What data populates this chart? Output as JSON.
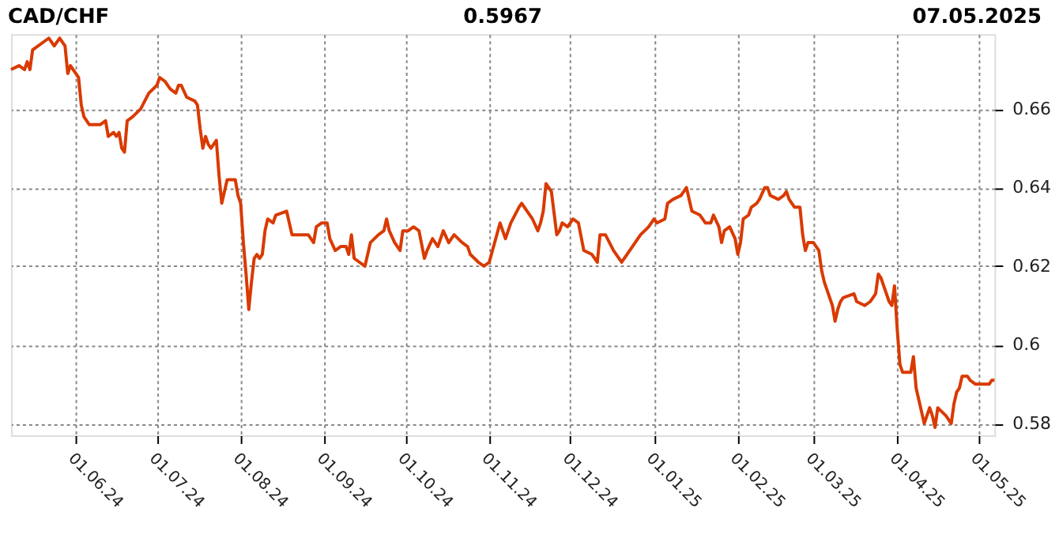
{
  "chart_data": {
    "type": "line",
    "title": "CAD/CHF",
    "annotations": [
      "0.5967",
      "07.05.2025"
    ],
    "x": [
      "2024-05-08",
      "2024-05-11",
      "2024-05-13",
      "2024-05-14",
      "2024-05-15",
      "2024-05-16",
      "2024-05-20",
      "2024-05-22",
      "2024-05-24",
      "2024-05-26",
      "2024-05-28",
      "2024-05-29",
      "2024-05-30",
      "2024-05-31",
      "2024-06-02",
      "2024-06-03",
      "2024-06-04",
      "2024-06-06",
      "2024-06-10",
      "2024-06-12",
      "2024-06-13",
      "2024-06-15",
      "2024-06-16",
      "2024-06-17",
      "2024-06-18",
      "2024-06-19",
      "2024-06-20",
      "2024-06-22",
      "2024-06-25",
      "2024-06-28",
      "2024-07-01",
      "2024-07-02",
      "2024-07-04",
      "2024-07-06",
      "2024-07-08",
      "2024-07-09",
      "2024-07-10",
      "2024-07-12",
      "2024-07-15",
      "2024-07-16",
      "2024-07-17",
      "2024-07-18",
      "2024-07-19",
      "2024-07-20",
      "2024-07-21",
      "2024-07-23",
      "2024-07-24",
      "2024-07-25",
      "2024-07-26",
      "2024-07-27",
      "2024-07-30",
      "2024-07-31",
      "2024-08-01",
      "2024-08-02",
      "2024-08-03",
      "2024-08-04",
      "2024-08-05",
      "2024-08-06",
      "2024-08-07",
      "2024-08-08",
      "2024-08-09",
      "2024-08-10",
      "2024-08-11",
      "2024-08-13",
      "2024-08-14",
      "2024-08-18",
      "2024-08-20",
      "2024-08-23",
      "2024-08-26",
      "2024-08-28",
      "2024-08-29",
      "2024-08-31",
      "2024-09-02",
      "2024-09-03",
      "2024-09-05",
      "2024-09-07",
      "2024-09-09",
      "2024-09-10",
      "2024-09-11",
      "2024-09-12",
      "2024-09-14",
      "2024-09-16",
      "2024-09-18",
      "2024-09-21",
      "2024-09-23",
      "2024-09-24",
      "2024-09-25",
      "2024-09-27",
      "2024-09-29",
      "2024-09-30",
      "2024-10-02",
      "2024-10-04",
      "2024-10-06",
      "2024-10-08",
      "2024-10-09",
      "2024-10-11",
      "2024-10-13",
      "2024-10-15",
      "2024-10-17",
      "2024-10-19",
      "2024-10-22",
      "2024-10-24",
      "2024-10-25",
      "2024-10-28",
      "2024-10-30",
      "2024-11-01",
      "2024-11-05",
      "2024-11-07",
      "2024-11-09",
      "2024-11-12",
      "2024-11-13",
      "2024-11-17",
      "2024-11-19",
      "2024-11-20",
      "2024-11-21",
      "2024-11-22",
      "2024-11-24",
      "2024-11-26",
      "2024-11-27",
      "2024-11-28",
      "2024-11-30",
      "2024-12-02",
      "2024-12-04",
      "2024-12-06",
      "2024-12-09",
      "2024-12-11",
      "2024-12-12",
      "2024-12-14",
      "2024-12-17",
      "2024-12-20",
      "2024-12-23",
      "2024-12-27",
      "2024-12-30",
      "2025-01-01",
      "2025-01-02",
      "2025-01-05",
      "2025-01-06",
      "2025-01-08",
      "2025-01-11",
      "2025-01-13",
      "2025-01-15",
      "2025-01-18",
      "2025-01-20",
      "2025-01-22",
      "2025-01-23",
      "2025-01-25",
      "2025-01-26",
      "2025-01-27",
      "2025-01-29",
      "2025-01-31",
      "2025-02-01",
      "2025-02-02",
      "2025-02-03",
      "2025-02-05",
      "2025-02-06",
      "2025-02-08",
      "2025-02-09",
      "2025-02-11",
      "2025-02-12",
      "2025-02-13",
      "2025-02-16",
      "2025-02-18",
      "2025-02-19",
      "2025-02-20",
      "2025-02-21",
      "2025-02-22",
      "2025-02-24",
      "2025-02-25",
      "2025-02-26",
      "2025-02-27",
      "2025-03-01",
      "2025-03-03",
      "2025-03-04",
      "2025-03-05",
      "2025-03-06",
      "2025-03-08",
      "2025-03-09",
      "2025-03-10",
      "2025-03-11",
      "2025-03-12",
      "2025-03-16",
      "2025-03-17",
      "2025-03-20",
      "2025-03-22",
      "2025-03-24",
      "2025-03-25",
      "2025-03-26",
      "2025-03-27",
      "2025-03-29",
      "2025-03-30",
      "2025-03-31",
      "2025-04-01",
      "2025-04-02",
      "2025-04-03",
      "2025-04-06",
      "2025-04-07",
      "2025-04-08",
      "2025-04-09",
      "2025-04-10",
      "2025-04-11",
      "2025-04-12",
      "2025-04-13",
      "2025-04-14",
      "2025-04-15",
      "2025-04-16",
      "2025-04-19",
      "2025-04-21",
      "2025-04-22",
      "2025-04-23",
      "2025-04-24",
      "2025-04-25",
      "2025-04-27",
      "2025-04-28",
      "2025-04-30",
      "2025-05-05",
      "2025-05-06",
      "2025-05-07"
    ],
    "series": [
      {
        "color": "#d93a00",
        "values": [
          0.67,
          0.671,
          0.67,
          0.672,
          0.67,
          0.675,
          0.677,
          0.678,
          0.676,
          0.678,
          0.676,
          0.669,
          0.671,
          0.67,
          0.668,
          0.661,
          0.658,
          0.656,
          0.656,
          0.657,
          0.653,
          0.654,
          0.653,
          0.654,
          0.65,
          0.649,
          0.657,
          0.658,
          0.66,
          0.664,
          0.666,
          0.668,
          0.667,
          0.665,
          0.664,
          0.666,
          0.666,
          0.663,
          0.662,
          0.661,
          0.655,
          0.65,
          0.653,
          0.651,
          0.65,
          0.652,
          0.643,
          0.636,
          0.639,
          0.642,
          0.642,
          0.638,
          0.636,
          0.626,
          0.618,
          0.609,
          0.616,
          0.622,
          0.623,
          0.622,
          0.623,
          0.629,
          0.632,
          0.631,
          0.633,
          0.634,
          0.628,
          0.628,
          0.628,
          0.626,
          0.63,
          0.631,
          0.631,
          0.627,
          0.624,
          0.625,
          0.625,
          0.623,
          0.628,
          0.622,
          0.621,
          0.62,
          0.626,
          0.628,
          0.629,
          0.632,
          0.629,
          0.626,
          0.624,
          0.629,
          0.629,
          0.63,
          0.629,
          0.622,
          0.624,
          0.627,
          0.625,
          0.629,
          0.626,
          0.628,
          0.626,
          0.625,
          0.623,
          0.621,
          0.62,
          0.621,
          0.631,
          0.627,
          0.631,
          0.635,
          0.636,
          0.632,
          0.629,
          0.631,
          0.634,
          0.641,
          0.639,
          0.628,
          0.629,
          0.631,
          0.63,
          0.632,
          0.631,
          0.624,
          0.623,
          0.621,
          0.628,
          0.628,
          0.624,
          0.621,
          0.624,
          0.628,
          0.63,
          0.632,
          0.631,
          0.632,
          0.636,
          0.637,
          0.638,
          0.64,
          0.634,
          0.633,
          0.631,
          0.631,
          0.633,
          0.63,
          0.626,
          0.629,
          0.63,
          0.627,
          0.623,
          0.626,
          0.632,
          0.633,
          0.635,
          0.636,
          0.637,
          0.64,
          0.64,
          0.638,
          0.637,
          0.638,
          0.639,
          0.637,
          0.636,
          0.635,
          0.635,
          0.628,
          0.624,
          0.626,
          0.626,
          0.624,
          0.619,
          0.616,
          0.614,
          0.61,
          0.606,
          0.609,
          0.611,
          0.612,
          0.613,
          0.611,
          0.61,
          0.611,
          0.613,
          0.618,
          0.617,
          0.615,
          0.611,
          0.61,
          0.615,
          0.604,
          0.595,
          0.593,
          0.593,
          0.597,
          0.589,
          0.586,
          0.583,
          0.58,
          0.582,
          0.584,
          0.582,
          0.579,
          0.584,
          0.582,
          0.58,
          0.585,
          0.588,
          0.589,
          0.592,
          0.592,
          0.591,
          0.59,
          0.59,
          0.591,
          0.591
        ]
      }
    ],
    "xlim": [
      "2024-05-08",
      "2025-05-07"
    ],
    "xticks": [
      {
        "value": "2024-06-01",
        "label": "01.06.24"
      },
      {
        "value": "2024-07-01",
        "label": "01.07.24"
      },
      {
        "value": "2024-08-01",
        "label": "01.08.24"
      },
      {
        "value": "2024-09-01",
        "label": "01.09.24"
      },
      {
        "value": "2024-10-01",
        "label": "01.10.24"
      },
      {
        "value": "2024-11-01",
        "label": "01.11.24"
      },
      {
        "value": "2024-12-01",
        "label": "01.12.24"
      },
      {
        "value": "2025-01-01",
        "label": "01.01.25"
      },
      {
        "value": "2025-02-01",
        "label": "01.02.25"
      },
      {
        "value": "2025-03-01",
        "label": "01.03.25"
      },
      {
        "value": "2025-04-01",
        "label": "01.04.25"
      },
      {
        "value": "2025-05-01",
        "label": "01.05.25"
      }
    ],
    "ylim": [
      0.577,
      0.679
    ],
    "yticks": [
      0.58,
      0.6,
      0.62,
      0.64,
      0.66
    ],
    "grid": true,
    "legend": false,
    "marker": "none",
    "line_style": "solid"
  }
}
